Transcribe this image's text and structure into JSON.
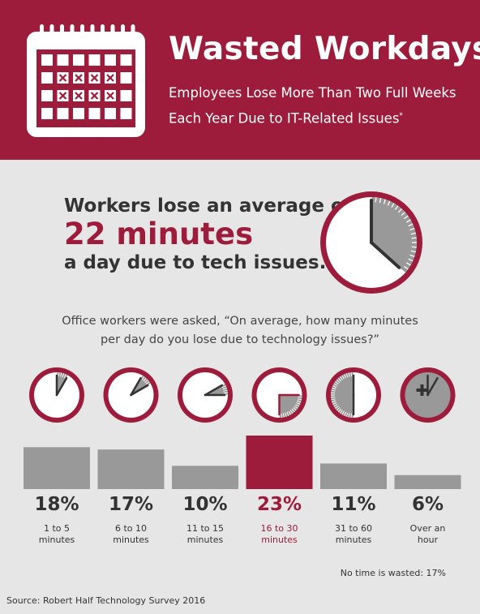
{
  "header": {
    "title": "Wasted Workdays",
    "subtitle_line1": "Employees Lose More Than Two Full Weeks",
    "subtitle_line2": "Each Year Due to IT-Related Issues",
    "subtitle_mark": "*",
    "icon": "calendar-icon"
  },
  "hero": {
    "line1": "Workers lose an average of",
    "line2": "22 minutes",
    "line3": "a day due to tech issues.",
    "clock_minutes": 22
  },
  "question": {
    "line1": "Office workers were asked, “On average, how many minutes",
    "line2": "per day do you lose due to technology issues?”"
  },
  "colors": {
    "brand": "#9d1c3b",
    "bar": "#999999",
    "background": "#e6e6e6",
    "text": "#333333"
  },
  "chart_data": {
    "type": "bar",
    "categories": [
      [
        "1 to 5",
        "minutes"
      ],
      [
        "6 to 10",
        "minutes"
      ],
      [
        "11 to 15",
        "minutes"
      ],
      [
        "16 to 30",
        "minutes"
      ],
      [
        "31 to 60",
        "minutes"
      ],
      [
        "Over an",
        "hour"
      ]
    ],
    "values": [
      18,
      17,
      10,
      23,
      11,
      6
    ],
    "value_labels": [
      "18%",
      "17%",
      "10%",
      "23%",
      "11%",
      "6%"
    ],
    "highlight_index": 3,
    "clock_ranges_minutes": [
      [
        0,
        5
      ],
      [
        5,
        10
      ],
      [
        10,
        15
      ],
      [
        15,
        30
      ],
      [
        30,
        60
      ],
      [
        60,
        60
      ]
    ],
    "ylim": [
      0,
      23
    ],
    "note": "No time is wasted: 17%"
  },
  "footer": {
    "source": "Source: Robert Half Technology Survey 2016"
  }
}
